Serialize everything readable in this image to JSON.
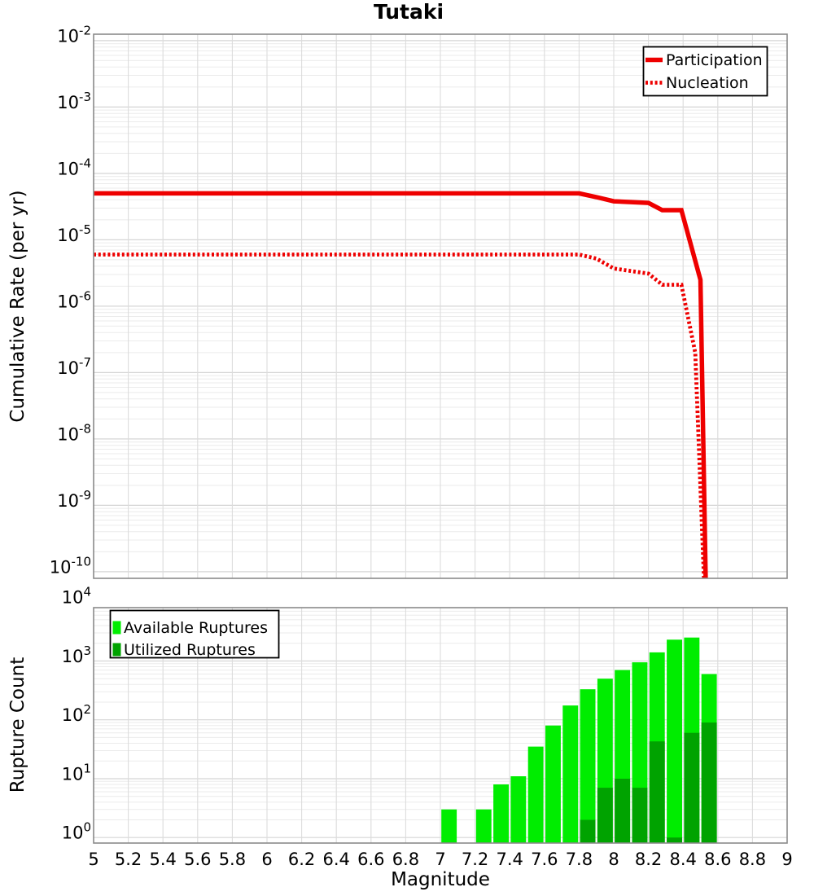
{
  "title": "Tutaki",
  "chart_data": [
    {
      "type": "line",
      "panel": "top",
      "title": "Tutaki",
      "xlabel": "Magnitude",
      "ylabel": "Cumulative Rate (per yr)",
      "xlim": [
        5,
        9
      ],
      "xtick_step": 0.2,
      "ylim": [
        1e-10,
        0.01
      ],
      "yscale": "log",
      "grid": true,
      "ytick_exponents": [
        -2,
        -3,
        -4,
        -5,
        -6,
        -7,
        -8,
        -9,
        -10
      ],
      "legend": {
        "position": "top-right",
        "entries": [
          "Participation",
          "Nucleation"
        ]
      },
      "series": [
        {
          "name": "Participation",
          "line_style": "solid",
          "color": "#ee0000",
          "points": [
            [
              5.0,
              5e-05
            ],
            [
              7.8,
              5e-05
            ],
            [
              7.9,
              4.4e-05
            ],
            [
              8.0,
              3.8e-05
            ],
            [
              8.2,
              3.6e-05
            ],
            [
              8.28,
              2.8e-05
            ],
            [
              8.39,
              2.8e-05
            ],
            [
              8.5,
              2.5e-06
            ],
            [
              8.53,
              8e-11
            ]
          ]
        },
        {
          "name": "Nucleation",
          "line_style": "dotted",
          "color": "#ee0000",
          "points": [
            [
              5.0,
              6e-06
            ],
            [
              7.8,
              6e-06
            ],
            [
              7.9,
              5.2e-06
            ],
            [
              8.0,
              3.7e-06
            ],
            [
              8.2,
              3.1e-06
            ],
            [
              8.28,
              2.1e-06
            ],
            [
              8.39,
              2.1e-06
            ],
            [
              8.47,
              2e-07
            ],
            [
              8.52,
              8e-11
            ]
          ]
        }
      ]
    },
    {
      "type": "bar",
      "panel": "bottom",
      "xlabel": "Magnitude",
      "ylabel": "Rupture Count",
      "xlim": [
        5,
        9
      ],
      "xtick_step": 0.2,
      "ylim": [
        1,
        10000
      ],
      "yscale": "log",
      "grid": true,
      "bin_width": 0.1,
      "ytick_exponents": [
        4,
        3,
        2,
        1,
        0
      ],
      "xtick_labels": [
        "5",
        "5.2",
        "5.4",
        "5.6",
        "5.8",
        "6",
        "6.2",
        "6.4",
        "6.6",
        "6.8",
        "7",
        "7.2",
        "7.4",
        "7.6",
        "7.8",
        "8",
        "8.2",
        "8.4",
        "8.6",
        "8.8",
        "9"
      ],
      "legend": {
        "position": "top-left",
        "entries": [
          "Available Ruptures",
          "Utilized Ruptures"
        ]
      },
      "series": [
        {
          "name": "Available Ruptures",
          "color": "#00ed00",
          "bins": [
            [
              7.0,
              3
            ],
            [
              7.2,
              3
            ],
            [
              7.3,
              8
            ],
            [
              7.4,
              11
            ],
            [
              7.5,
              35
            ],
            [
              7.6,
              80
            ],
            [
              7.7,
              175
            ],
            [
              7.8,
              330
            ],
            [
              7.9,
              500
            ],
            [
              8.0,
              700
            ],
            [
              8.1,
              950
            ],
            [
              8.2,
              1400
            ],
            [
              8.3,
              2300
            ],
            [
              8.4,
              2500
            ],
            [
              8.5,
              600
            ]
          ]
        },
        {
          "name": "Utilized Ruptures",
          "color": "#00a300",
          "bins": [
            [
              7.8,
              2
            ],
            [
              7.9,
              7
            ],
            [
              8.0,
              10
            ],
            [
              8.1,
              7
            ],
            [
              8.2,
              43
            ],
            [
              8.3,
              1
            ],
            [
              8.4,
              60
            ],
            [
              8.5,
              90
            ]
          ]
        }
      ]
    }
  ]
}
